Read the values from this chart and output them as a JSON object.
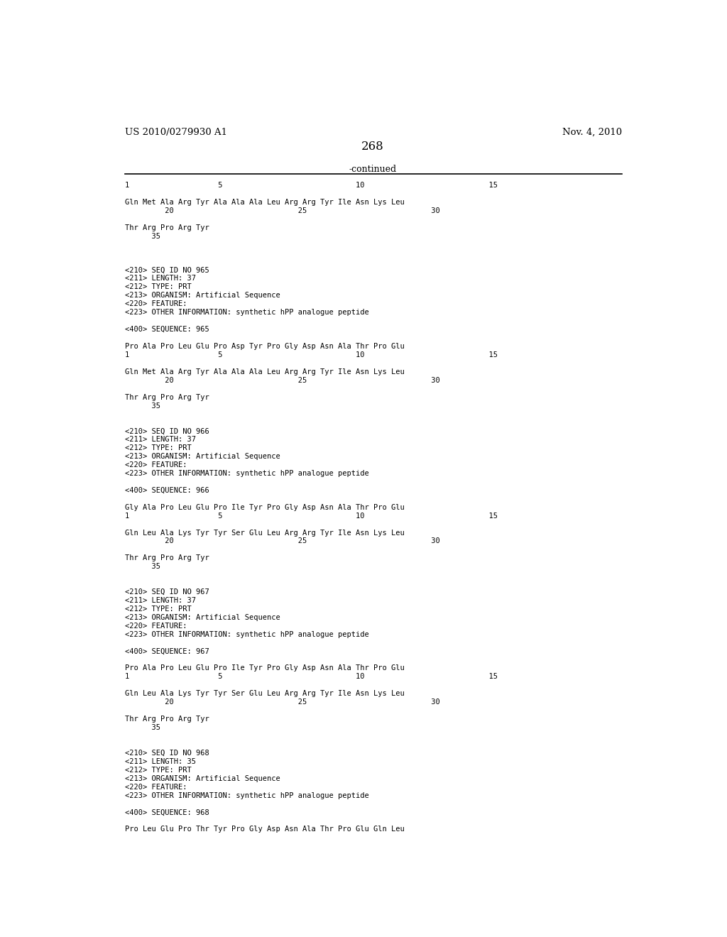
{
  "header_left": "US 2010/0279930 A1",
  "header_right": "Nov. 4, 2010",
  "page_number": "268",
  "continued_text": "-continued",
  "background_color": "#ffffff",
  "text_color": "#000000",
  "content_lines": [
    "1                    5                              10                            15",
    "",
    "Gln Met Ala Arg Tyr Ala Ala Ala Leu Arg Arg Tyr Ile Asn Lys Leu",
    "         20                            25                            30",
    "",
    "Thr Arg Pro Arg Tyr",
    "      35",
    "",
    "",
    "",
    "<210> SEQ ID NO 965",
    "<211> LENGTH: 37",
    "<212> TYPE: PRT",
    "<213> ORGANISM: Artificial Sequence",
    "<220> FEATURE:",
    "<223> OTHER INFORMATION: synthetic hPP analogue peptide",
    "",
    "<400> SEQUENCE: 965",
    "",
    "Pro Ala Pro Leu Glu Pro Asp Tyr Pro Gly Asp Asn Ala Thr Pro Glu",
    "1                    5                              10                            15",
    "",
    "Gln Met Ala Arg Tyr Ala Ala Ala Leu Arg Arg Tyr Ile Asn Lys Leu",
    "         20                            25                            30",
    "",
    "Thr Arg Pro Arg Tyr",
    "      35",
    "",
    "",
    "<210> SEQ ID NO 966",
    "<211> LENGTH: 37",
    "<212> TYPE: PRT",
    "<213> ORGANISM: Artificial Sequence",
    "<220> FEATURE:",
    "<223> OTHER INFORMATION: synthetic hPP analogue peptide",
    "",
    "<400> SEQUENCE: 966",
    "",
    "Gly Ala Pro Leu Glu Pro Ile Tyr Pro Gly Asp Asn Ala Thr Pro Glu",
    "1                    5                              10                            15",
    "",
    "Gln Leu Ala Lys Tyr Tyr Ser Glu Leu Arg Arg Tyr Ile Asn Lys Leu",
    "         20                            25                            30",
    "",
    "Thr Arg Pro Arg Tyr",
    "      35",
    "",
    "",
    "<210> SEQ ID NO 967",
    "<211> LENGTH: 37",
    "<212> TYPE: PRT",
    "<213> ORGANISM: Artificial Sequence",
    "<220> FEATURE:",
    "<223> OTHER INFORMATION: synthetic hPP analogue peptide",
    "",
    "<400> SEQUENCE: 967",
    "",
    "Pro Ala Pro Leu Glu Pro Ile Tyr Pro Gly Asp Asn Ala Thr Pro Glu",
    "1                    5                              10                            15",
    "",
    "Gln Leu Ala Lys Tyr Tyr Ser Glu Leu Arg Arg Tyr Ile Asn Lys Leu",
    "         20                            25                            30",
    "",
    "Thr Arg Pro Arg Tyr",
    "      35",
    "",
    "",
    "<210> SEQ ID NO 968",
    "<211> LENGTH: 35",
    "<212> TYPE: PRT",
    "<213> ORGANISM: Artificial Sequence",
    "<220> FEATURE:",
    "<223> OTHER INFORMATION: synthetic hPP analogue peptide",
    "",
    "<400> SEQUENCE: 968",
    "",
    "Pro Leu Glu Pro Thr Tyr Pro Gly Asp Asn Ala Thr Pro Glu Gln Leu"
  ]
}
